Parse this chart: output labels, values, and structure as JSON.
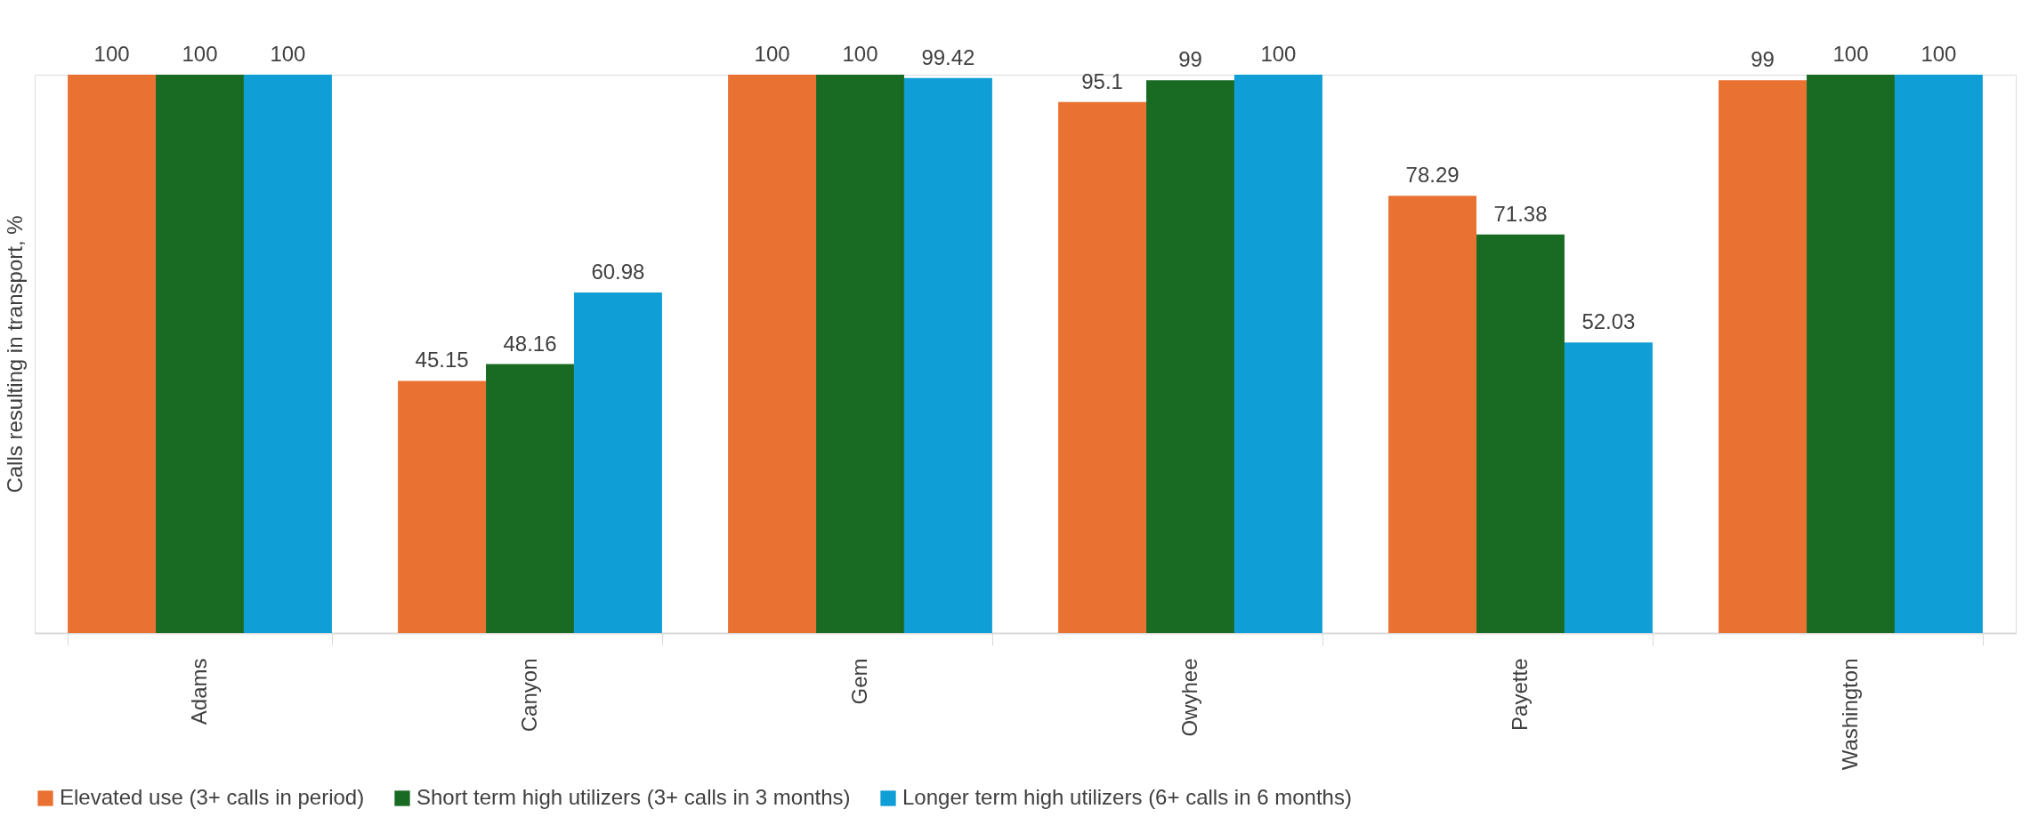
{
  "chart_data": {
    "type": "bar",
    "ylabel": "Calls resulting in transport, %",
    "categories": [
      "Adams",
      "Canyon",
      "Gem",
      "Owyhee",
      "Payette",
      "Washington"
    ],
    "series": [
      {
        "name": "Elevated use (3+ calls in period)",
        "color": "#e97132",
        "values": [
          100,
          45.15,
          100,
          95.1,
          78.29,
          99
        ]
      },
      {
        "name": "Short term high utilizers (3+ calls in 3 months)",
        "color": "#196b24",
        "values": [
          100,
          48.16,
          100,
          99,
          71.38,
          100
        ]
      },
      {
        "name": "Longer term high utilizers (6+ calls in 6 months)",
        "color": "#0f9ed5",
        "values": [
          100,
          60.98,
          99.42,
          100,
          52.03,
          100
        ]
      }
    ],
    "ylim": [
      0,
      100
    ],
    "tick_labels": "x",
    "data_labels": true,
    "legend": "bottom"
  }
}
